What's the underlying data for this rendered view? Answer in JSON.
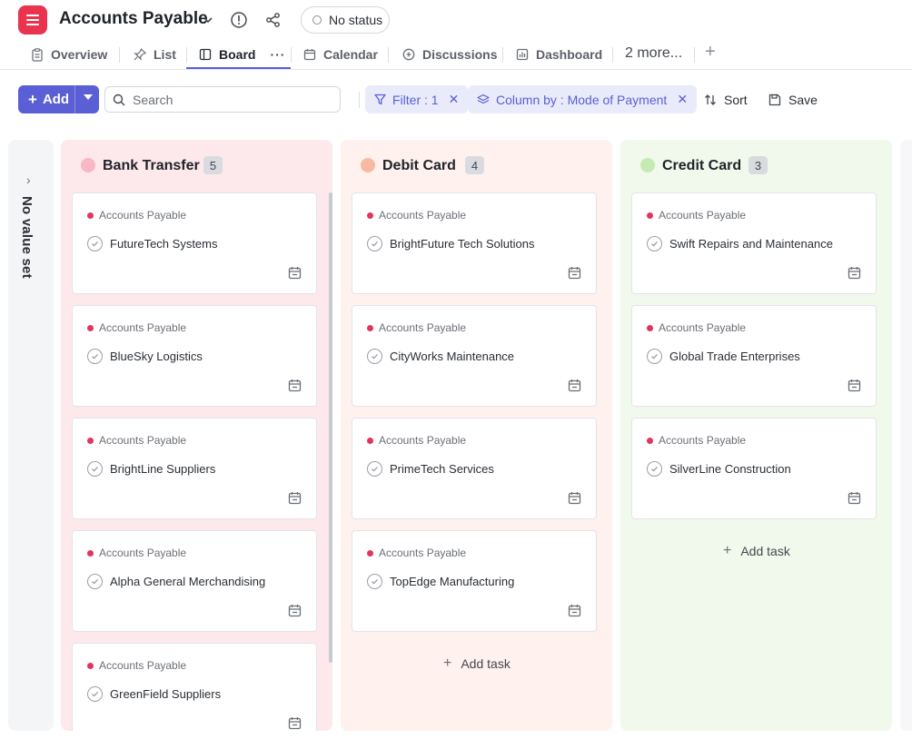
{
  "header": {
    "title": "Accounts Payable",
    "status": "No status",
    "colors": {
      "app_icon": "#e8344e",
      "accent": "#5a5fd6"
    }
  },
  "tabs": [
    {
      "label": "Overview",
      "icon": "document-icon"
    },
    {
      "label": "List",
      "icon": "pin-icon"
    },
    {
      "label": "Board",
      "icon": "board-icon",
      "active": true
    },
    {
      "label": "Calendar",
      "icon": "calendar-icon"
    },
    {
      "label": "Discussions",
      "icon": "discussion-icon"
    },
    {
      "label": "Dashboard",
      "icon": "dashboard-icon"
    }
  ],
  "tabs_more": "2 more...",
  "toolbar": {
    "add_label": "Add",
    "search_placeholder": "Search",
    "filter_label": "Filter : 1",
    "column_by_label": "Column by : Mode of Payment",
    "sort_label": "Sort",
    "save_label": "Save"
  },
  "board": {
    "no_value_label": "No value set",
    "add_task_label": "Add task",
    "columns": [
      {
        "title": "Bank Transfer",
        "count": "5",
        "dot_color": "#f9b7c3",
        "bg_color": "#fde9ec",
        "cards": [
          {
            "list": "Accounts Payable",
            "name": "FutureTech Systems"
          },
          {
            "list": "Accounts Payable",
            "name": "BlueSky Logistics"
          },
          {
            "list": "Accounts Payable",
            "name": "BrightLine Suppliers"
          },
          {
            "list": "Accounts Payable",
            "name": "Alpha General Merchandising"
          },
          {
            "list": "Accounts Payable",
            "name": "GreenField Suppliers"
          }
        ]
      },
      {
        "title": "Debit Card",
        "count": "4",
        "dot_color": "#f8b9a3",
        "bg_color": "#fef1ee",
        "cards": [
          {
            "list": "Accounts Payable",
            "name": "BrightFuture Tech Solutions"
          },
          {
            "list": "Accounts Payable",
            "name": "CityWorks Maintenance"
          },
          {
            "list": "Accounts Payable",
            "name": "PrimeTech Services"
          },
          {
            "list": "Accounts Payable",
            "name": "TopEdge Manufacturing"
          }
        ]
      },
      {
        "title": "Credit Card",
        "count": "3",
        "dot_color": "#c5eab3",
        "bg_color": "#f1f9ec",
        "cards": [
          {
            "list": "Accounts Payable",
            "name": "Swift Repairs and Maintenance"
          },
          {
            "list": "Accounts Payable",
            "name": "Global Trade Enterprises"
          },
          {
            "list": "Accounts Payable",
            "name": "SilverLine Construction"
          }
        ]
      }
    ]
  }
}
